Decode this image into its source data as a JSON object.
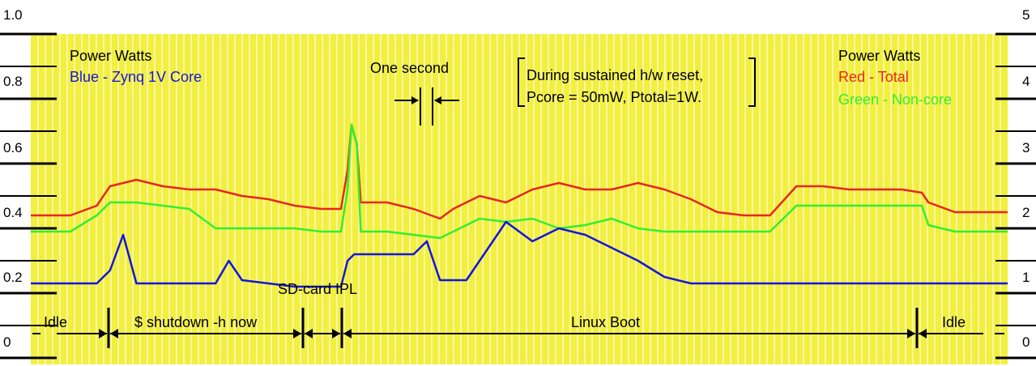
{
  "chart_data": {
    "type": "line",
    "title": "",
    "left_axis": {
      "ticks": [
        "1.0",
        "0.8",
        "0.6",
        "0.4",
        "0.2",
        "0"
      ],
      "ylim": [
        0,
        1.0
      ]
    },
    "right_axis": {
      "ticks": [
        "5",
        "4",
        "3",
        "2",
        "1",
        "0"
      ],
      "ylim": [
        0,
        5
      ]
    },
    "grid": true,
    "background": "#f2ef40",
    "legend_left": {
      "title": "Power Watts",
      "entries": [
        {
          "label": "Blue - Zynq 1V Core",
          "color": "#1515dd"
        }
      ]
    },
    "legend_right": {
      "title": "Power Watts",
      "entries": [
        {
          "label": "Red - Total",
          "color": "#e8261a"
        },
        {
          "label": "Green - Non-core",
          "color": "#33ee33"
        }
      ]
    },
    "annotations": {
      "one_second": "One second",
      "reset_note_line1": "During sustained h/w reset,",
      "reset_note_line2": "Pcore = 50mW, Ptotal=1W.",
      "sd_card": "SD-card IPL"
    },
    "phases": [
      "Idle",
      "$ shutdown -h now",
      "Linux Boot",
      "Idle"
    ],
    "x_range_seconds": [
      0,
      67
    ],
    "series": [
      {
        "name": "Red - Total",
        "axis": "right",
        "color": "#e8261a",
        "points": [
          [
            0,
            2.2
          ],
          [
            3,
            2.2
          ],
          [
            5,
            2.35
          ],
          [
            6,
            2.65
          ],
          [
            8,
            2.75
          ],
          [
            10,
            2.65
          ],
          [
            12,
            2.6
          ],
          [
            14,
            2.6
          ],
          [
            16,
            2.5
          ],
          [
            18,
            2.45
          ],
          [
            20,
            2.35
          ],
          [
            22,
            2.3
          ],
          [
            23.5,
            2.3
          ],
          [
            24,
            2.9
          ],
          [
            24.3,
            3.6
          ],
          [
            24.7,
            3.3
          ],
          [
            25,
            2.4
          ],
          [
            27,
            2.4
          ],
          [
            29,
            2.3
          ],
          [
            31,
            2.15
          ],
          [
            32,
            2.3
          ],
          [
            34,
            2.5
          ],
          [
            36,
            2.4
          ],
          [
            38,
            2.6
          ],
          [
            40,
            2.7
          ],
          [
            42,
            2.6
          ],
          [
            44,
            2.6
          ],
          [
            46,
            2.7
          ],
          [
            48,
            2.6
          ],
          [
            50,
            2.45
          ],
          [
            52,
            2.25
          ],
          [
            54,
            2.2
          ],
          [
            56,
            2.2
          ],
          [
            58,
            2.65
          ],
          [
            60,
            2.65
          ],
          [
            62,
            2.6
          ],
          [
            64,
            2.6
          ],
          [
            66,
            2.6
          ],
          [
            67.5,
            2.55
          ],
          [
            68,
            2.4
          ],
          [
            70,
            2.25
          ],
          [
            72,
            2.25
          ],
          [
            74,
            2.25
          ]
        ]
      },
      {
        "name": "Green - Non-core",
        "axis": "right",
        "color": "#33ee33",
        "points": [
          [
            0,
            1.95
          ],
          [
            3,
            1.95
          ],
          [
            5,
            2.2
          ],
          [
            6,
            2.4
          ],
          [
            8,
            2.4
          ],
          [
            10,
            2.35
          ],
          [
            12,
            2.3
          ],
          [
            14,
            2.0
          ],
          [
            16,
            2.0
          ],
          [
            18,
            2.0
          ],
          [
            20,
            2.0
          ],
          [
            22,
            1.95
          ],
          [
            23.5,
            1.95
          ],
          [
            24,
            2.6
          ],
          [
            24.3,
            3.6
          ],
          [
            24.7,
            3.3
          ],
          [
            25,
            1.95
          ],
          [
            27,
            1.95
          ],
          [
            29,
            1.9
          ],
          [
            31,
            1.85
          ],
          [
            32,
            1.95
          ],
          [
            34,
            2.15
          ],
          [
            36,
            2.1
          ],
          [
            38,
            2.15
          ],
          [
            40,
            2.0
          ],
          [
            42,
            2.05
          ],
          [
            44,
            2.15
          ],
          [
            46,
            2.0
          ],
          [
            48,
            1.95
          ],
          [
            50,
            1.95
          ],
          [
            52,
            1.95
          ],
          [
            54,
            1.95
          ],
          [
            56,
            1.95
          ],
          [
            58,
            2.35
          ],
          [
            60,
            2.35
          ],
          [
            62,
            2.35
          ],
          [
            64,
            2.35
          ],
          [
            66,
            2.35
          ],
          [
            67.5,
            2.35
          ],
          [
            68,
            2.05
          ],
          [
            70,
            1.95
          ],
          [
            72,
            1.95
          ],
          [
            74,
            1.95
          ]
        ]
      },
      {
        "name": "Blue - Zynq 1V Core",
        "axis": "left",
        "color": "#1515dd",
        "points": [
          [
            0,
            0.23
          ],
          [
            5,
            0.23
          ],
          [
            6,
            0.27
          ],
          [
            7,
            0.38
          ],
          [
            8,
            0.23
          ],
          [
            10,
            0.23
          ],
          [
            14,
            0.23
          ],
          [
            15,
            0.3
          ],
          [
            16,
            0.24
          ],
          [
            20,
            0.22
          ],
          [
            23.5,
            0.22
          ],
          [
            24,
            0.3
          ],
          [
            24.5,
            0.32
          ],
          [
            27,
            0.32
          ],
          [
            29,
            0.32
          ],
          [
            30,
            0.36
          ],
          [
            31,
            0.24
          ],
          [
            33,
            0.24
          ],
          [
            34,
            0.3
          ],
          [
            36,
            0.42
          ],
          [
            38,
            0.36
          ],
          [
            40,
            0.4
          ],
          [
            42,
            0.38
          ],
          [
            44,
            0.34
          ],
          [
            46,
            0.3
          ],
          [
            48,
            0.25
          ],
          [
            50,
            0.23
          ],
          [
            52,
            0.23
          ],
          [
            54,
            0.23
          ],
          [
            58,
            0.23
          ],
          [
            62,
            0.23
          ],
          [
            66,
            0.23
          ],
          [
            70,
            0.23
          ],
          [
            74,
            0.23
          ]
        ]
      }
    ]
  }
}
